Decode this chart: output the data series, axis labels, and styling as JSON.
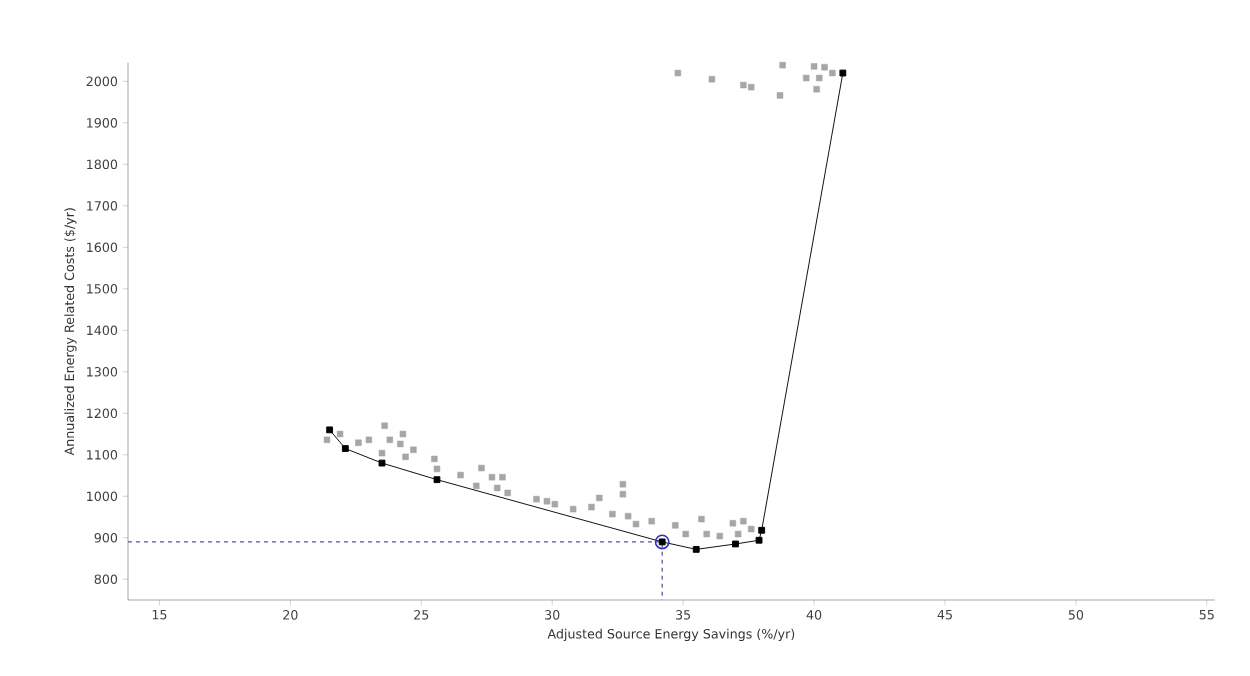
{
  "chart_data": {
    "type": "scatter",
    "xlabel": "Adjusted Source Energy Savings (%/yr)",
    "ylabel": "Annualized Energy Related Costs ($/yr)",
    "xlim": [
      13.8,
      55.3
    ],
    "ylim": [
      750,
      2045
    ],
    "xticks": [
      15,
      20,
      25,
      30,
      35,
      40,
      45,
      50,
      55
    ],
    "yticks": [
      800,
      900,
      1000,
      1100,
      1200,
      1300,
      1400,
      1500,
      1600,
      1700,
      1800,
      1900,
      2000
    ],
    "grid": false,
    "series": [
      {
        "marker": "square",
        "color": "#a6a6a6",
        "x": [
          21.4,
          21.9,
          22.6,
          23.0,
          23.6,
          23.8,
          24.3,
          24.2,
          24.7,
          24.4,
          23.5,
          25.5,
          25.6,
          26.5,
          27.3,
          27.7,
          28.1,
          27.9,
          28.3,
          27.1,
          29.4,
          29.8,
          30.1,
          30.8,
          31.5,
          31.8,
          32.7,
          32.7,
          32.3,
          32.9,
          33.2,
          33.8,
          34.7,
          35.1,
          35.7,
          35.9,
          36.4,
          36.9,
          37.3,
          37.1,
          37.6,
          34.8,
          36.1,
          37.3,
          37.6,
          38.7,
          38.8,
          40.0,
          40.4,
          39.7,
          40.2,
          40.1,
          40.7
        ],
        "values": [
          1136,
          1150,
          1129,
          1136,
          1170,
          1136,
          1150,
          1126,
          1112,
          1095,
          1104,
          1090,
          1066,
          1051,
          1068,
          1046,
          1046,
          1020,
          1008,
          1025,
          993,
          988,
          981,
          969,
          974,
          996,
          1029,
          1005,
          957,
          952,
          933,
          940,
          930,
          909,
          945,
          909,
          904,
          935,
          940,
          909,
          921,
          2020,
          2005,
          1991,
          1986,
          1966,
          2039,
          2036,
          2034,
          2008,
          2008,
          1981,
          2020
        ]
      },
      {
        "type": "line",
        "marker": "square",
        "line_style": "solid",
        "color": "#000000",
        "x": [
          21.5,
          22.1,
          23.5,
          25.6,
          34.2,
          35.5,
          37.0,
          37.9,
          38.0,
          41.1
        ],
        "values": [
          1160,
          1115,
          1080,
          1040,
          890,
          872,
          885,
          894,
          918,
          2020
        ]
      },
      {
        "type": "line",
        "marker": "none",
        "line_style": "dashed",
        "color": "#1a1a8c",
        "x": [
          13.8,
          34.2,
          34.2
        ],
        "values": [
          890,
          890,
          750
        ]
      },
      {
        "type": "scatter",
        "marker": "circle",
        "color": "#3333bb",
        "x": [
          34.2
        ],
        "values": [
          890
        ]
      }
    ]
  }
}
